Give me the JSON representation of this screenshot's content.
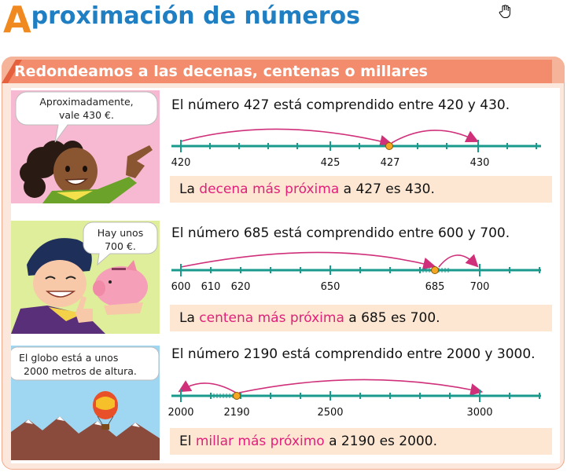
{
  "title": {
    "first_letter": "A",
    "rest": "proximación de números"
  },
  "header": {
    "text": "Redondeamos a las decenas, centenas o millares"
  },
  "examples": [
    {
      "bubble_line1": "Aproximadamente,",
      "bubble_line2": "vale 430 €.",
      "statement": "El número 427 está comprendido entre 420 y 430.",
      "conclusion": {
        "pre": "La ",
        "highlight": "decena más próxima",
        "post": " a 427 es 430."
      },
      "labels": {
        "l1": "420",
        "l2": "425",
        "l3": "427",
        "l4": "430"
      }
    },
    {
      "bubble_line1": "Hay unos",
      "bubble_line2": "700 €.",
      "statement": "El número 685 está comprendido entre 600 y 700.",
      "conclusion": {
        "pre": "La ",
        "highlight": "centena más próxima",
        "post": " a 685 es 700."
      },
      "labels": {
        "l1": "600",
        "l2": "610",
        "l3": "620",
        "l4": "650",
        "l5": "685",
        "l6": "700"
      }
    },
    {
      "bubble_line1": "El globo está a unos",
      "bubble_line2": "2000 metros de altura.",
      "statement": "El número 2190 está comprendido entre 2000 y 3000.",
      "conclusion": {
        "pre": "El ",
        "highlight": "millar más próximo",
        "post": " a 2190 es 2000."
      },
      "labels": {
        "l1": "2000",
        "l2": "2190",
        "l3": "2500",
        "l4": "3000"
      }
    }
  ],
  "colors": {
    "accent_orange": "#f0891f",
    "title_blue": "#1f7fc2",
    "highlight_pink": "#e0207a",
    "line_teal": "#1a9a8c",
    "arrow_pink": "#d0307a",
    "header_salmon": "#f28c6c"
  }
}
